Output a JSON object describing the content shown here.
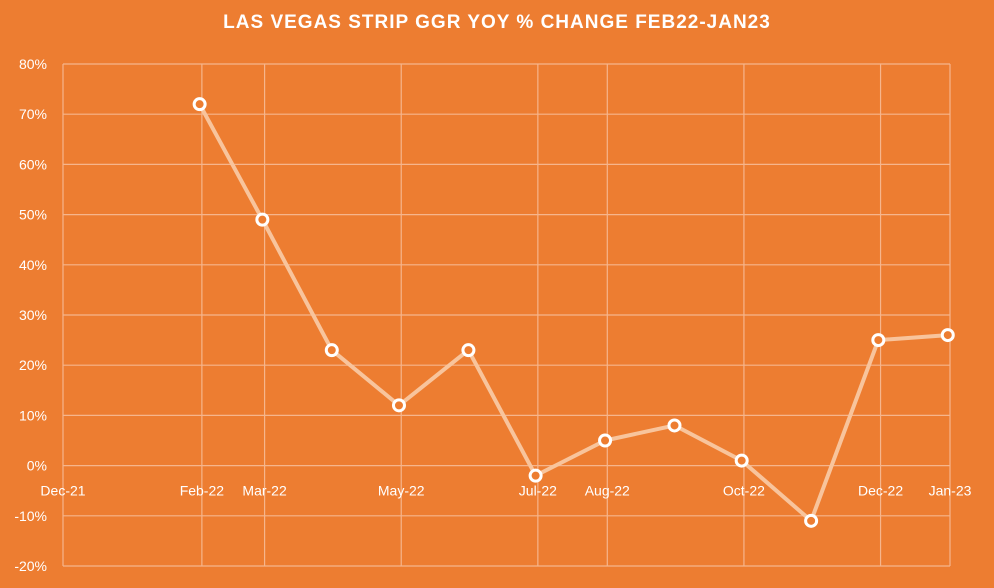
{
  "chart_data": {
    "type": "line",
    "title": "LAS VEGAS STRIP GGR YOY % CHANGE FEB22-JAN23",
    "xlabel": "",
    "ylabel": "",
    "x_ticks": [
      "Dec-21",
      "Feb-22",
      "Mar-22",
      "May-22",
      "Jul-22",
      "Aug-22",
      "Oct-22",
      "Dec-22",
      "Jan-23"
    ],
    "x_tick_dates": [
      "2021-12-01",
      "2022-02-01",
      "2022-03-01",
      "2022-05-01",
      "2022-07-01",
      "2022-08-01",
      "2022-10-01",
      "2022-12-01",
      "2023-01-01"
    ],
    "x_range": [
      "2021-12-01",
      "2023-01-01"
    ],
    "y_ticks": [
      -20,
      -10,
      0,
      10,
      20,
      30,
      40,
      50,
      60,
      70,
      80
    ],
    "y_tick_labels": [
      "-20%",
      "-10%",
      "0%",
      "10%",
      "20%",
      "30%",
      "40%",
      "50%",
      "60%",
      "70%",
      "80%"
    ],
    "ylim": [
      -20,
      80
    ],
    "grid": true,
    "legend": "none",
    "series": [
      {
        "points": [
          {
            "x": "2022-01-31",
            "y": 72
          },
          {
            "x": "2022-02-28",
            "y": 49
          },
          {
            "x": "2022-03-31",
            "y": 23
          },
          {
            "x": "2022-04-30",
            "y": 12
          },
          {
            "x": "2022-05-31",
            "y": 23
          },
          {
            "x": "2022-06-30",
            "y": -2
          },
          {
            "x": "2022-07-31",
            "y": 5
          },
          {
            "x": "2022-08-31",
            "y": 8
          },
          {
            "x": "2022-09-30",
            "y": 1
          },
          {
            "x": "2022-10-31",
            "y": -11
          },
          {
            "x": "2022-11-30",
            "y": 25
          },
          {
            "x": "2022-12-31",
            "y": 26
          }
        ]
      }
    ],
    "colors": {
      "background": "#ED7D31",
      "line": "#F8C49C",
      "marker_stroke": "#FFFFFF",
      "grid": "#F6B58C",
      "text": "#FFFFFF"
    }
  }
}
